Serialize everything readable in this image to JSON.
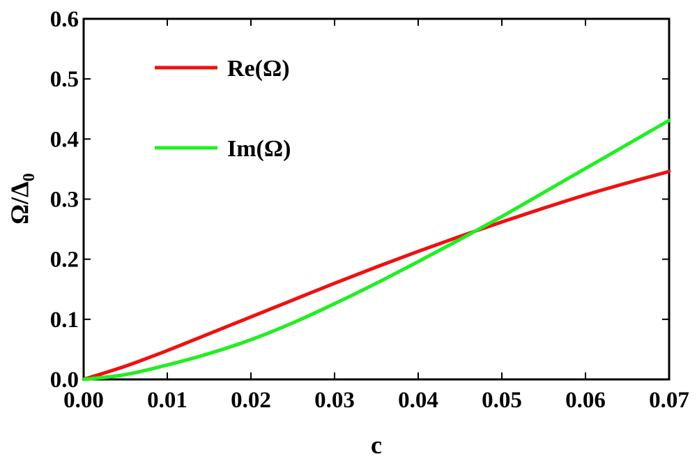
{
  "chart_data": {
    "type": "line",
    "title": "",
    "xlabel": "c",
    "ylabel_main": "Ω/Δ",
    "ylabel_sub": "0",
    "xlim": [
      0,
      0.07
    ],
    "ylim": [
      0,
      0.6
    ],
    "xticks": [
      0,
      0.01,
      0.02,
      0.03,
      0.04,
      0.05,
      0.06,
      0.07
    ],
    "xtick_labels": [
      "0.00",
      "0.01",
      "0.02",
      "0.03",
      "0.04",
      "0.05",
      "0.06",
      "0.07"
    ],
    "yticks": [
      0,
      0.1,
      0.2,
      0.3,
      0.4,
      0.5,
      0.6
    ],
    "ytick_labels": [
      "0.0",
      "0.1",
      "0.2",
      "0.3",
      "0.4",
      "0.5",
      "0.6"
    ],
    "grid": false,
    "legend_position": "top-left",
    "series": [
      {
        "name": "Re(Ω)",
        "color": "#ee1111",
        "x": [
          0,
          0.005,
          0.01,
          0.015,
          0.02,
          0.025,
          0.03,
          0.035,
          0.04,
          0.045,
          0.05,
          0.055,
          0.06,
          0.065,
          0.07
        ],
        "y": [
          0,
          0.022,
          0.048,
          0.076,
          0.104,
          0.132,
          0.16,
          0.187,
          0.213,
          0.238,
          0.262,
          0.285,
          0.307,
          0.327,
          0.346
        ]
      },
      {
        "name": "Im(Ω)",
        "color": "#22ee22",
        "x": [
          0,
          0.005,
          0.01,
          0.015,
          0.02,
          0.025,
          0.03,
          0.035,
          0.04,
          0.045,
          0.05,
          0.055,
          0.06,
          0.065,
          0.07
        ],
        "y": [
          0,
          0.008,
          0.024,
          0.043,
          0.066,
          0.094,
          0.126,
          0.16,
          0.196,
          0.233,
          0.271,
          0.311,
          0.351,
          0.391,
          0.431
        ]
      }
    ]
  }
}
